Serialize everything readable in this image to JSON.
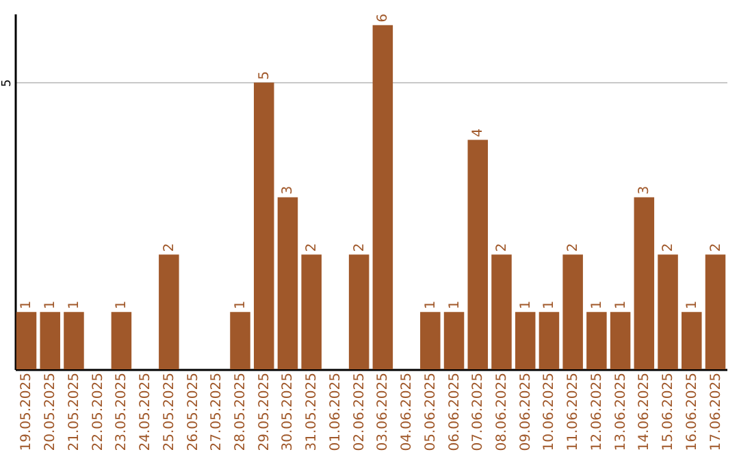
{
  "chart_data": {
    "type": "bar",
    "categories": [
      "19.05.2025",
      "20.05.2025",
      "21.05.2025",
      "22.05.2025",
      "23.05.2025",
      "24.05.2025",
      "25.05.2025",
      "26.05.2025",
      "27.05.2025",
      "28.05.2025",
      "29.05.2025",
      "30.05.2025",
      "31.05.2025",
      "01.06.2025",
      "02.06.2025",
      "03.06.2025",
      "04.06.2025",
      "05.06.2025",
      "06.06.2025",
      "07.06.2025",
      "08.06.2025",
      "09.06.2025",
      "10.06.2025",
      "11.06.2025",
      "12.06.2025",
      "13.06.2025",
      "14.06.2025",
      "15.06.2025",
      "16.06.2025",
      "17.06.2025"
    ],
    "values": [
      1,
      1,
      1,
      0,
      1,
      0,
      2,
      0,
      0,
      1,
      5,
      3,
      2,
      0,
      2,
      6,
      0,
      1,
      1,
      4,
      2,
      1,
      1,
      2,
      1,
      1,
      3,
      2,
      1,
      2
    ],
    "value_labels": [
      "1",
      "1",
      "1",
      null,
      "1",
      null,
      "2",
      null,
      null,
      "1",
      "5",
      "3",
      "2",
      null,
      "2",
      "6",
      null,
      "1",
      "1",
      "4",
      "2",
      "1",
      "1",
      "2",
      "1",
      "1",
      "3",
      "2",
      "1",
      "2"
    ],
    "color": "#a0582a",
    "ylim": [
      0,
      6.2
    ],
    "yticks": [
      5
    ],
    "grid": "y"
  }
}
